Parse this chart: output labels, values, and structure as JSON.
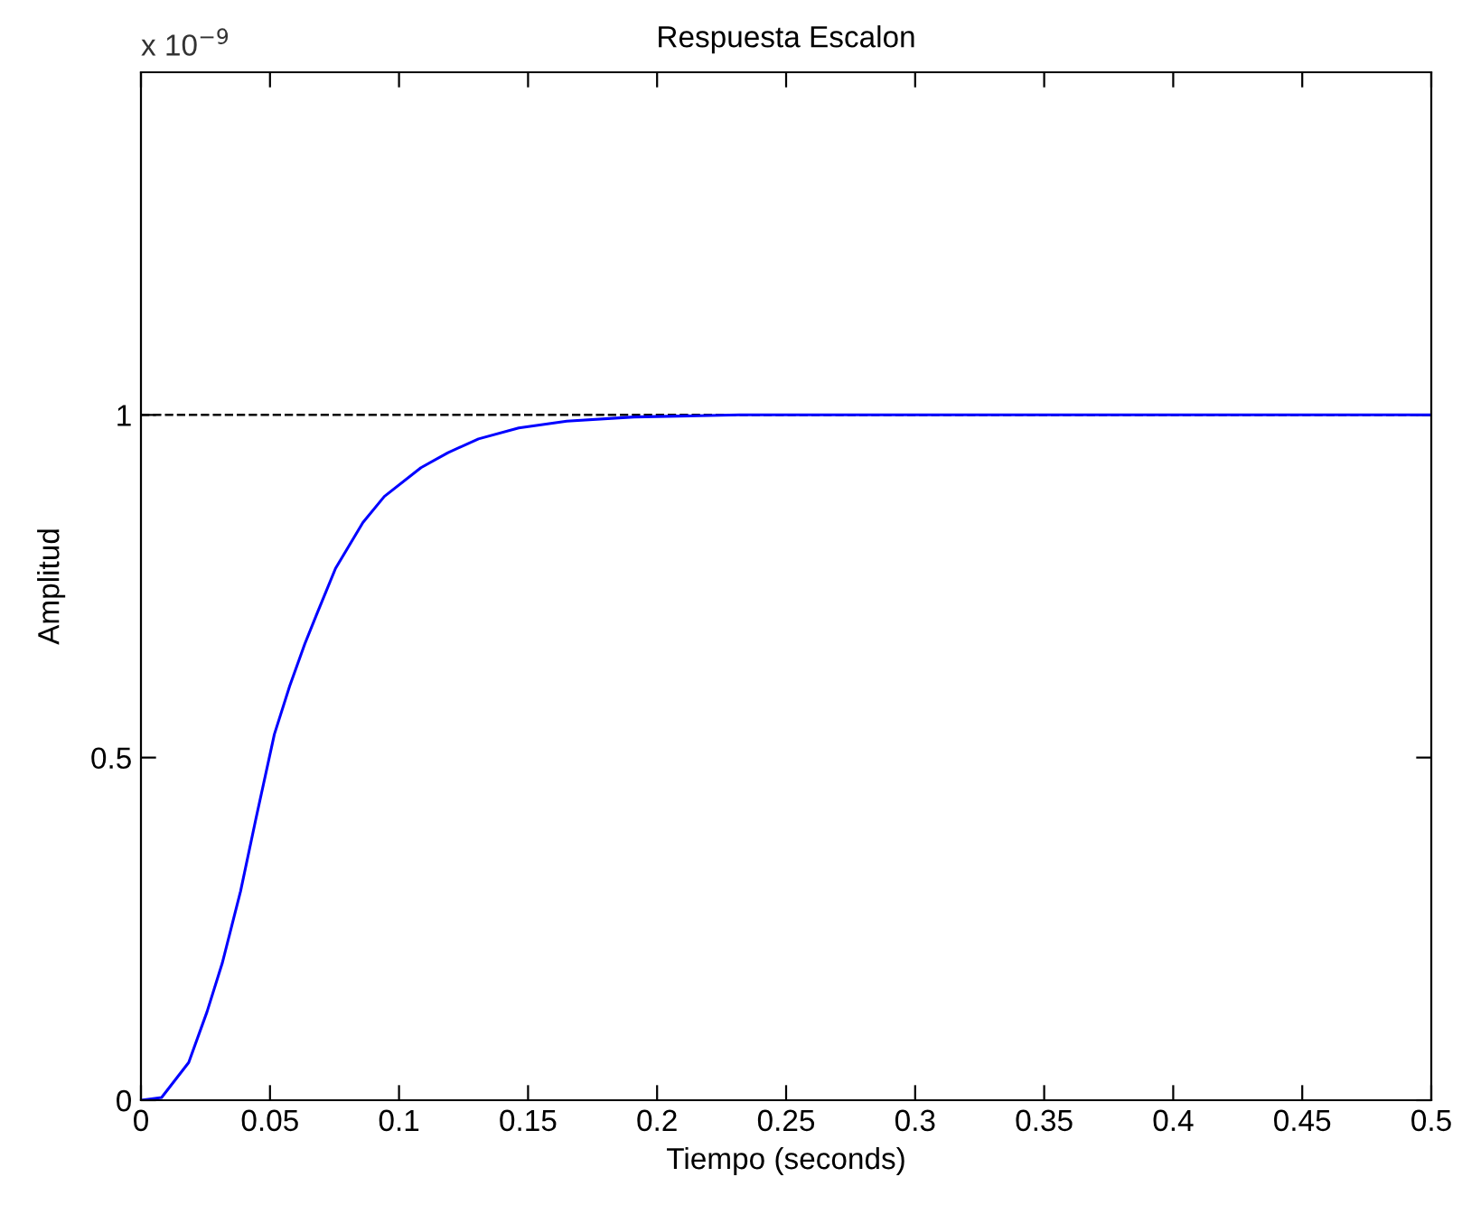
{
  "chart_data": {
    "type": "line",
    "title": "Respuesta Escalon",
    "xlabel": "Tiempo (seconds)",
    "ylabel": "Amplitud",
    "annotations": [
      "x 10$^{−9}$"
    ],
    "series": [
      {
        "color": "#0000ff",
        "x": [
          0,
          0.008,
          0.0185,
          0.0256,
          0.0315,
          0.0386,
          0.0445,
          0.0517,
          0.0576,
          0.0635,
          0.0682,
          0.0754,
          0.086,
          0.0943,
          0.1085,
          0.119,
          0.1308,
          0.1464,
          0.165,
          0.191,
          0.232,
          0.5
        ],
        "values": [
          0,
          0.004,
          0.055,
          0.129,
          0.2,
          0.305,
          0.41,
          0.534,
          0.604,
          0.666,
          0.71,
          0.776,
          0.843,
          0.881,
          0.923,
          0.945,
          0.965,
          0.981,
          0.991,
          0.997,
          1.0,
          1.0
        ]
      }
    ],
    "ref_lines": [
      {
        "axis": "y",
        "value": 1,
        "color": "#000000",
        "line_style": "dashed"
      }
    ],
    "xlim": [
      0,
      0.5
    ],
    "ylim": [
      0,
      1.5
    ],
    "xticks": [
      0,
      0.05,
      0.1,
      0.15,
      0.2,
      0.25,
      0.3,
      0.35,
      0.4,
      0.45,
      0.5
    ],
    "yticks": [
      0,
      0.5,
      1
    ],
    "grid": false,
    "legend": false,
    "marker": "none",
    "line_style": "solid"
  }
}
